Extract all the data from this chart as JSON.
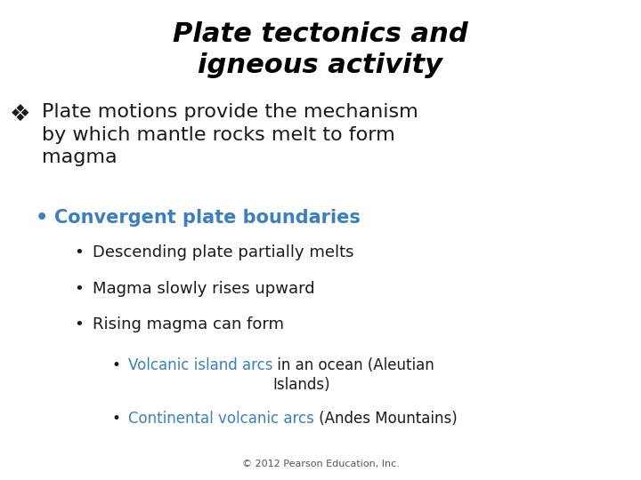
{
  "title_line1": "Plate tectonics and",
  "title_line2": "igneous activity",
  "title_color": "#000000",
  "title_fontsize": 22,
  "title_fontstyle": "italic",
  "title_fontweight": "bold",
  "background_color": "#ffffff",
  "blue_color": "#3a7fc1",
  "black_color": "#1a1a1a",
  "footer": "© 2012 Pearson Education, Inc.",
  "footer_fontsize": 8,
  "footer_color": "#555555",
  "figwidth": 7.2,
  "figheight": 5.4,
  "dpi": 100
}
